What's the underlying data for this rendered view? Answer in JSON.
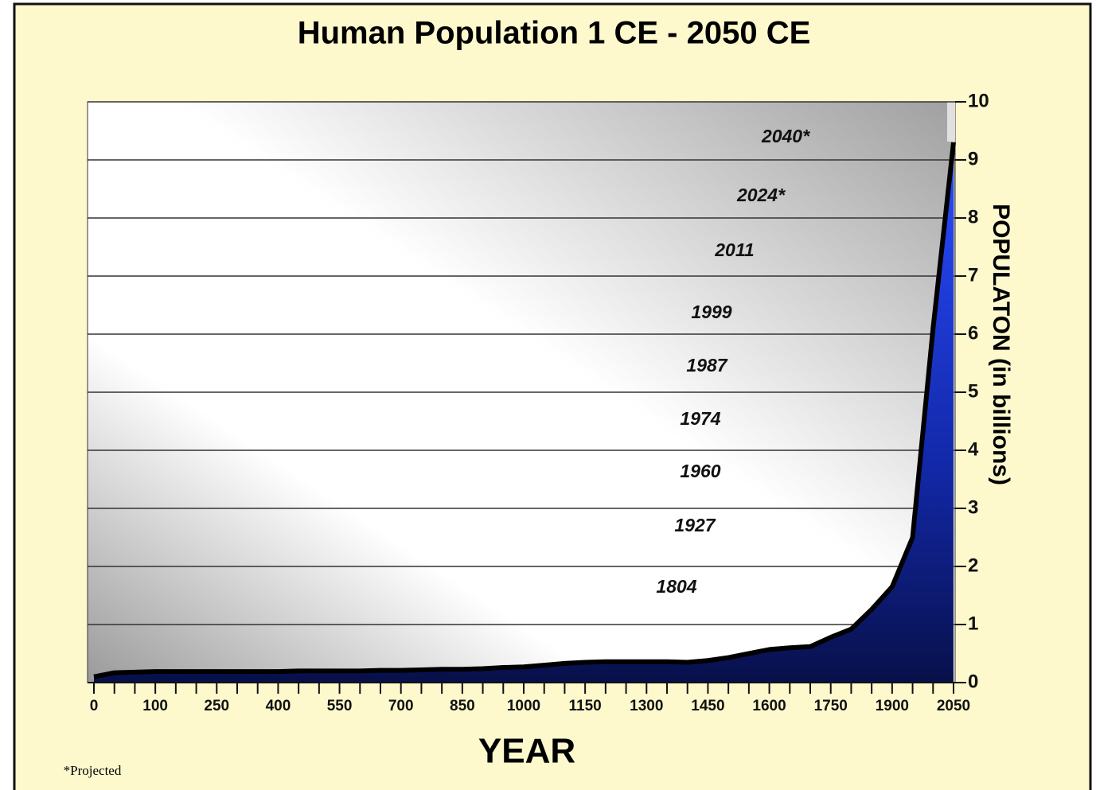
{
  "chart_data": {
    "type": "area",
    "title": "Human Population 1 CE - 2050 CE",
    "x_label": "YEAR",
    "y_label": "POPULATON (in billions)",
    "footnote": "*Projected",
    "categories": [
      "0",
      null,
      null,
      "100",
      null,
      null,
      "250",
      null,
      null,
      "400",
      null,
      null,
      "550",
      null,
      null,
      "700",
      null,
      null,
      "850",
      null,
      null,
      "1000",
      null,
      null,
      "1150",
      null,
      null,
      "1300",
      null,
      null,
      "1450",
      null,
      null,
      "1600",
      null,
      null,
      "1750",
      null,
      null,
      "1900",
      null,
      null,
      "2050"
    ],
    "values": [
      0.1,
      0.17,
      0.18,
      0.19,
      0.19,
      0.19,
      0.19,
      0.19,
      0.19,
      0.19,
      0.2,
      0.2,
      0.2,
      0.2,
      0.21,
      0.21,
      0.22,
      0.23,
      0.23,
      0.24,
      0.26,
      0.27,
      0.3,
      0.33,
      0.35,
      0.36,
      0.36,
      0.36,
      0.36,
      0.35,
      0.38,
      0.43,
      0.5,
      0.57,
      0.6,
      0.62,
      0.78,
      0.92,
      1.26,
      1.65,
      2.5,
      6.1,
      9.3
    ],
    "ylim": [
      0,
      10
    ],
    "yticks": [
      0,
      1,
      2,
      3,
      4,
      5,
      6,
      7,
      8,
      9,
      10
    ],
    "grid": true,
    "color": "#1430c8",
    "annotations": [
      "2040*",
      "2024*",
      "2011",
      "1999",
      "1987",
      "1974",
      "1960",
      "1927",
      "1804"
    ]
  }
}
